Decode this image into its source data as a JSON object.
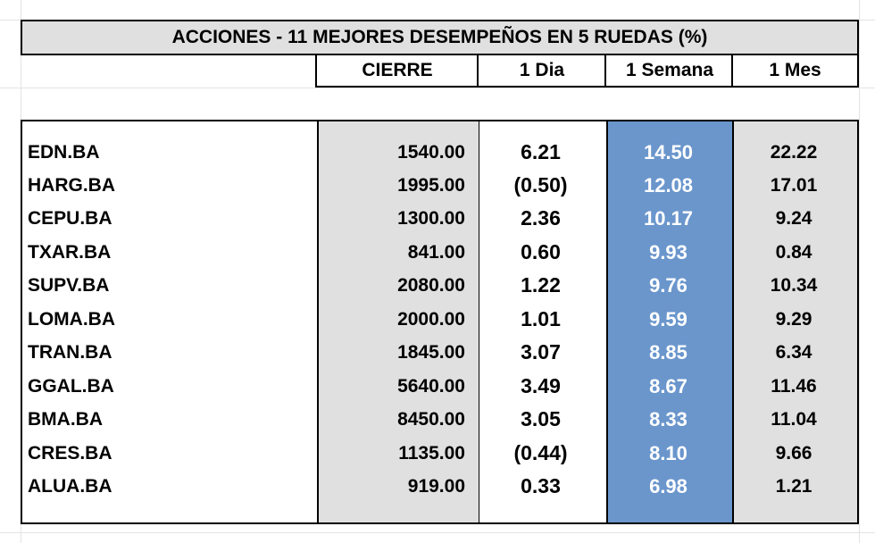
{
  "title": "ACCIONES   - 11  MEJORES DESEMPEÑOS EN 5 RUEDAS (%)",
  "headers": {
    "cierre": "CIERRE",
    "dia": "1 Dia",
    "semana": "1 Semana",
    "mes": "1 Mes"
  },
  "colors": {
    "header_bg": "#e0e0e0",
    "highlight_column": "#6a96cc",
    "border": "#000000"
  },
  "rows": [
    {
      "ticker": "EDN.BA",
      "cierre": "1540.00",
      "dia": "6.21",
      "semana": "14.50",
      "mes": "22.22"
    },
    {
      "ticker": "HARG.BA",
      "cierre": "1995.00",
      "dia": "(0.50)",
      "semana": "12.08",
      "mes": "17.01"
    },
    {
      "ticker": "CEPU.BA",
      "cierre": "1300.00",
      "dia": "2.36",
      "semana": "10.17",
      "mes": "9.24"
    },
    {
      "ticker": "TXAR.BA",
      "cierre": "841.00",
      "dia": "0.60",
      "semana": "9.93",
      "mes": "0.84"
    },
    {
      "ticker": "SUPV.BA",
      "cierre": "2080.00",
      "dia": "1.22",
      "semana": "9.76",
      "mes": "10.34"
    },
    {
      "ticker": "LOMA.BA",
      "cierre": "2000.00",
      "dia": "1.01",
      "semana": "9.59",
      "mes": "9.29"
    },
    {
      "ticker": "TRAN.BA",
      "cierre": "1845.00",
      "dia": "3.07",
      "semana": "8.85",
      "mes": "6.34"
    },
    {
      "ticker": "GGAL.BA",
      "cierre": "5640.00",
      "dia": "3.49",
      "semana": "8.67",
      "mes": "11.46"
    },
    {
      "ticker": "BMA.BA",
      "cierre": "8450.00",
      "dia": "3.05",
      "semana": "8.33",
      "mes": "11.04"
    },
    {
      "ticker": "CRES.BA",
      "cierre": "1135.00",
      "dia": "(0.44)",
      "semana": "8.10",
      "mes": "9.66"
    },
    {
      "ticker": "ALUA.BA",
      "cierre": "919.00",
      "dia": "0.33",
      "semana": "6.98",
      "mes": "1.21"
    }
  ]
}
